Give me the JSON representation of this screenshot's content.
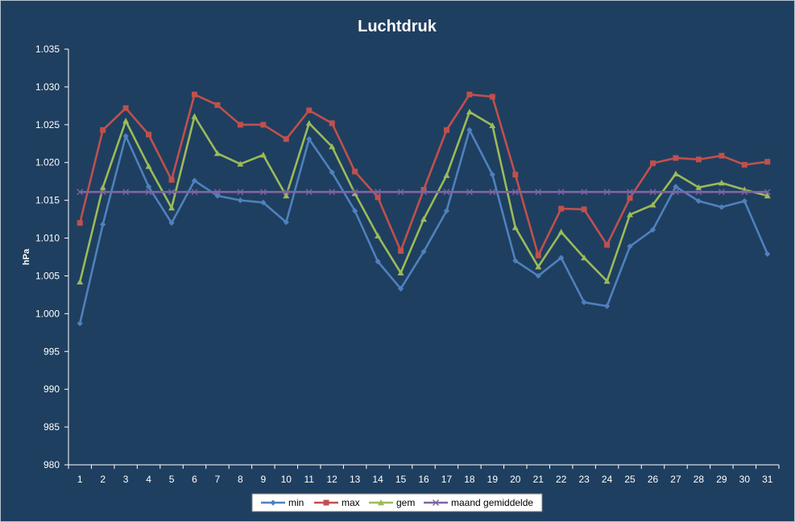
{
  "chart_data": {
    "type": "line",
    "title": "Luchtdruk",
    "xlabel": "",
    "ylabel": "hPa",
    "ylim": [
      980,
      1035
    ],
    "yticks": [
      980,
      985,
      990,
      995,
      1000,
      1005,
      1010,
      1015,
      1020,
      1025,
      1030,
      1035
    ],
    "ytick_labels": [
      "980",
      "985",
      "990",
      "995",
      "1.000",
      "1.005",
      "1.010",
      "1.015",
      "1.020",
      "1.025",
      "1.030",
      "1.035"
    ],
    "categories": [
      "1",
      "2",
      "3",
      "4",
      "5",
      "6",
      "7",
      "8",
      "9",
      "10",
      "11",
      "12",
      "13",
      "14",
      "15",
      "16",
      "17",
      "18",
      "19",
      "20",
      "21",
      "22",
      "23",
      "24",
      "25",
      "26",
      "27",
      "28",
      "29",
      "30",
      "31"
    ],
    "grid": false,
    "legend_position": "bottom",
    "background": "#1f3f60",
    "series": [
      {
        "name": "min",
        "color": "#4f81bd",
        "marker": "diamond",
        "values": [
          998.7,
          1011.8,
          1023.5,
          1016.8,
          1012.0,
          1017.6,
          1015.6,
          1015.0,
          1014.7,
          1012.1,
          1023.1,
          1018.7,
          1013.6,
          1006.9,
          1003.3,
          1008.2,
          1013.6,
          1024.3,
          1018.4,
          1007.0,
          1005.0,
          1007.4,
          1001.5,
          1001.0,
          1008.9,
          1011.1,
          1016.8,
          1014.9,
          1014.1,
          1014.9,
          1007.9
        ]
      },
      {
        "name": "max",
        "color": "#c0504d",
        "marker": "square",
        "values": [
          1012.0,
          1024.3,
          1027.2,
          1023.7,
          1017.7,
          1029.0,
          1027.6,
          1025.0,
          1025.0,
          1023.1,
          1026.9,
          1025.2,
          1018.8,
          1015.4,
          1008.3,
          1016.4,
          1024.3,
          1029.0,
          1028.7,
          1018.4,
          1007.7,
          1013.9,
          1013.8,
          1009.1,
          1015.3,
          1019.9,
          1020.6,
          1020.4,
          1020.9,
          1019.7,
          1020.1
        ]
      },
      {
        "name": "gem",
        "color": "#9bbb59",
        "marker": "triangle",
        "values": [
          1004.2,
          1016.7,
          1025.5,
          1019.5,
          1014.0,
          1026.1,
          1021.2,
          1019.8,
          1021.0,
          1015.6,
          1025.2,
          1022.1,
          1015.9,
          1010.3,
          1005.4,
          1012.5,
          1018.3,
          1026.7,
          1024.9,
          1011.4,
          1006.2,
          1010.8,
          1007.4,
          1004.3,
          1013.1,
          1014.4,
          1018.5,
          1016.7,
          1017.3,
          1016.4,
          1015.6
        ]
      },
      {
        "name": "maand gemiddelde",
        "color": "#8064a2",
        "marker": "x",
        "values": [
          1016.1,
          1016.1,
          1016.1,
          1016.1,
          1016.1,
          1016.1,
          1016.1,
          1016.1,
          1016.1,
          1016.1,
          1016.1,
          1016.1,
          1016.1,
          1016.1,
          1016.1,
          1016.1,
          1016.1,
          1016.1,
          1016.1,
          1016.1,
          1016.1,
          1016.1,
          1016.1,
          1016.1,
          1016.1,
          1016.1,
          1016.1,
          1016.1,
          1016.1,
          1016.1,
          1016.1
        ]
      }
    ]
  }
}
